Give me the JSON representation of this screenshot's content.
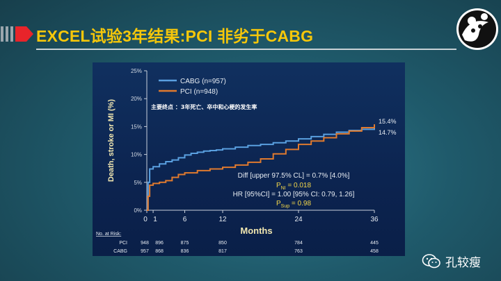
{
  "slide": {
    "title": "EXCEL试验3年结果:PCI 非劣于CABG",
    "watermark": "孔较瘦",
    "accent_color": "#f6c70a",
    "arrow_color": "#e8242a",
    "logo_icon": "panda-logo-icon",
    "watermark_icon": "wechat-icon"
  },
  "chart_data": {
    "type": "line",
    "title": "",
    "annotation": "主要终点 ：3年死亡、卒中和心梗的发生率",
    "xlabel": "Months",
    "ylabel": "Death, stroke or MI (%)",
    "xticks": [
      0,
      1,
      6,
      12,
      24,
      36
    ],
    "xlim": [
      0,
      36
    ],
    "yticks": [
      "0%",
      "5%",
      "10%",
      "15%",
      "20%",
      "25%"
    ],
    "ylim": [
      0,
      25
    ],
    "legend_position": "top-left",
    "series": [
      {
        "name": "CABG (n=957)",
        "color": "#5aa0e0",
        "end_label": "14.7%",
        "points": [
          [
            0,
            0
          ],
          [
            0.2,
            5.0
          ],
          [
            0.45,
            7.4
          ],
          [
            1,
            7.8
          ],
          [
            2,
            8.3
          ],
          [
            3,
            8.7
          ],
          [
            4,
            9.0
          ],
          [
            5,
            9.4
          ],
          [
            6,
            9.9
          ],
          [
            7,
            10.2
          ],
          [
            8,
            10.4
          ],
          [
            9,
            10.6
          ],
          [
            10,
            10.7
          ],
          [
            11,
            10.8
          ],
          [
            12,
            11.0
          ],
          [
            14,
            11.3
          ],
          [
            16,
            11.6
          ],
          [
            18,
            11.8
          ],
          [
            20,
            12.1
          ],
          [
            22,
            12.4
          ],
          [
            24,
            12.8
          ],
          [
            26,
            13.2
          ],
          [
            28,
            13.6
          ],
          [
            30,
            14.0
          ],
          [
            32,
            14.3
          ],
          [
            34,
            14.5
          ],
          [
            36,
            14.7
          ]
        ]
      },
      {
        "name": "PCI (n=948)",
        "color": "#e07a2e",
        "end_label": "15.4%",
        "points": [
          [
            0,
            0
          ],
          [
            0.2,
            2.5
          ],
          [
            0.45,
            4.5
          ],
          [
            1,
            4.8
          ],
          [
            2,
            5.0
          ],
          [
            3,
            5.3
          ],
          [
            4,
            5.9
          ],
          [
            5,
            6.4
          ],
          [
            6,
            6.7
          ],
          [
            8,
            7.1
          ],
          [
            10,
            7.4
          ],
          [
            12,
            7.7
          ],
          [
            14,
            8.1
          ],
          [
            16,
            8.6
          ],
          [
            18,
            9.2
          ],
          [
            20,
            10.1
          ],
          [
            22,
            10.9
          ],
          [
            24,
            11.8
          ],
          [
            26,
            12.4
          ],
          [
            28,
            13.0
          ],
          [
            30,
            13.7
          ],
          [
            32,
            14.2
          ],
          [
            34,
            14.8
          ],
          [
            36,
            15.4
          ]
        ]
      }
    ],
    "stats": {
      "line1": "Diff [upper 97.5% CL] =  0.7% [4.0%]",
      "p_ni": "P<sub>NI</sub> = 0.018",
      "p_ni_main": "P",
      "p_ni_sub": "NI",
      "p_ni_val": " = 0.018",
      "line3": "HR [95%CI] = 1.00 [95% CI: 0.79, 1.26]",
      "p_sup_main": "P",
      "p_sup_sub": "Sup",
      "p_sup_val": " = 0.98"
    },
    "at_risk": {
      "header": "No. at Risk:",
      "columns": [
        0,
        1,
        6,
        12,
        24,
        36
      ],
      "rows": [
        {
          "label": "PCI",
          "values": [
            "948",
            "896",
            "875",
            "850",
            "784",
            "445"
          ]
        },
        {
          "label": "CABG",
          "values": [
            "957",
            "868",
            "836",
            "817",
            "763",
            "458"
          ]
        }
      ]
    }
  }
}
